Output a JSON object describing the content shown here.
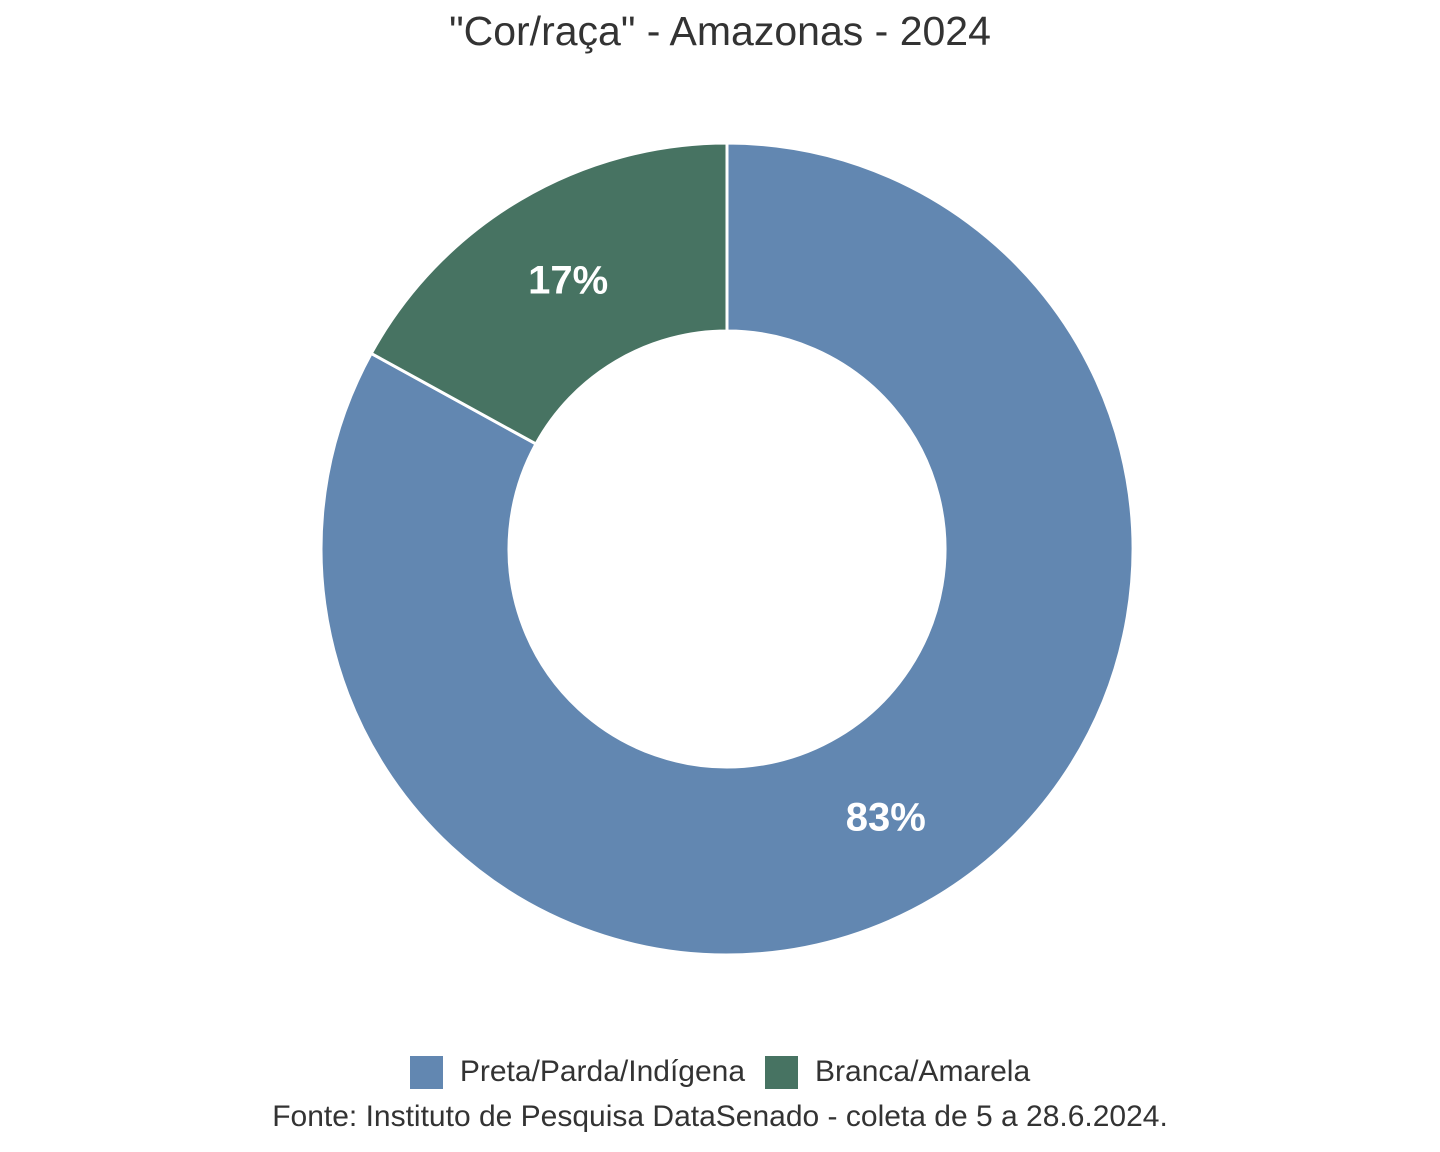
{
  "title": "\"Cor/raça\" - Amazonas - 2024",
  "footer": {
    "source": "Fonte: Instituto de Pesquisa DataSenado - coleta de 5 a 28.6.2024."
  },
  "chart_data": {
    "type": "pie",
    "subtype": "donut",
    "title": "\"Cor/raça\" - Amazonas - 2024",
    "unit": "%",
    "slices": [
      {
        "label": "Preta/Parda/Indígena",
        "value": 83,
        "display": "83%",
        "color": "#6287b1"
      },
      {
        "label": "Branca/Amarela",
        "value": 17,
        "display": "17%",
        "color": "#477362"
      }
    ],
    "start_angle_deg": 0,
    "direction": "clockwise",
    "divider_color": "#ffffff",
    "label_color": "#ffffff",
    "legend_position": "bottom",
    "source": "Fonte: Instituto de Pesquisa DataSenado - coleta de 5 a 28.6.2024."
  }
}
